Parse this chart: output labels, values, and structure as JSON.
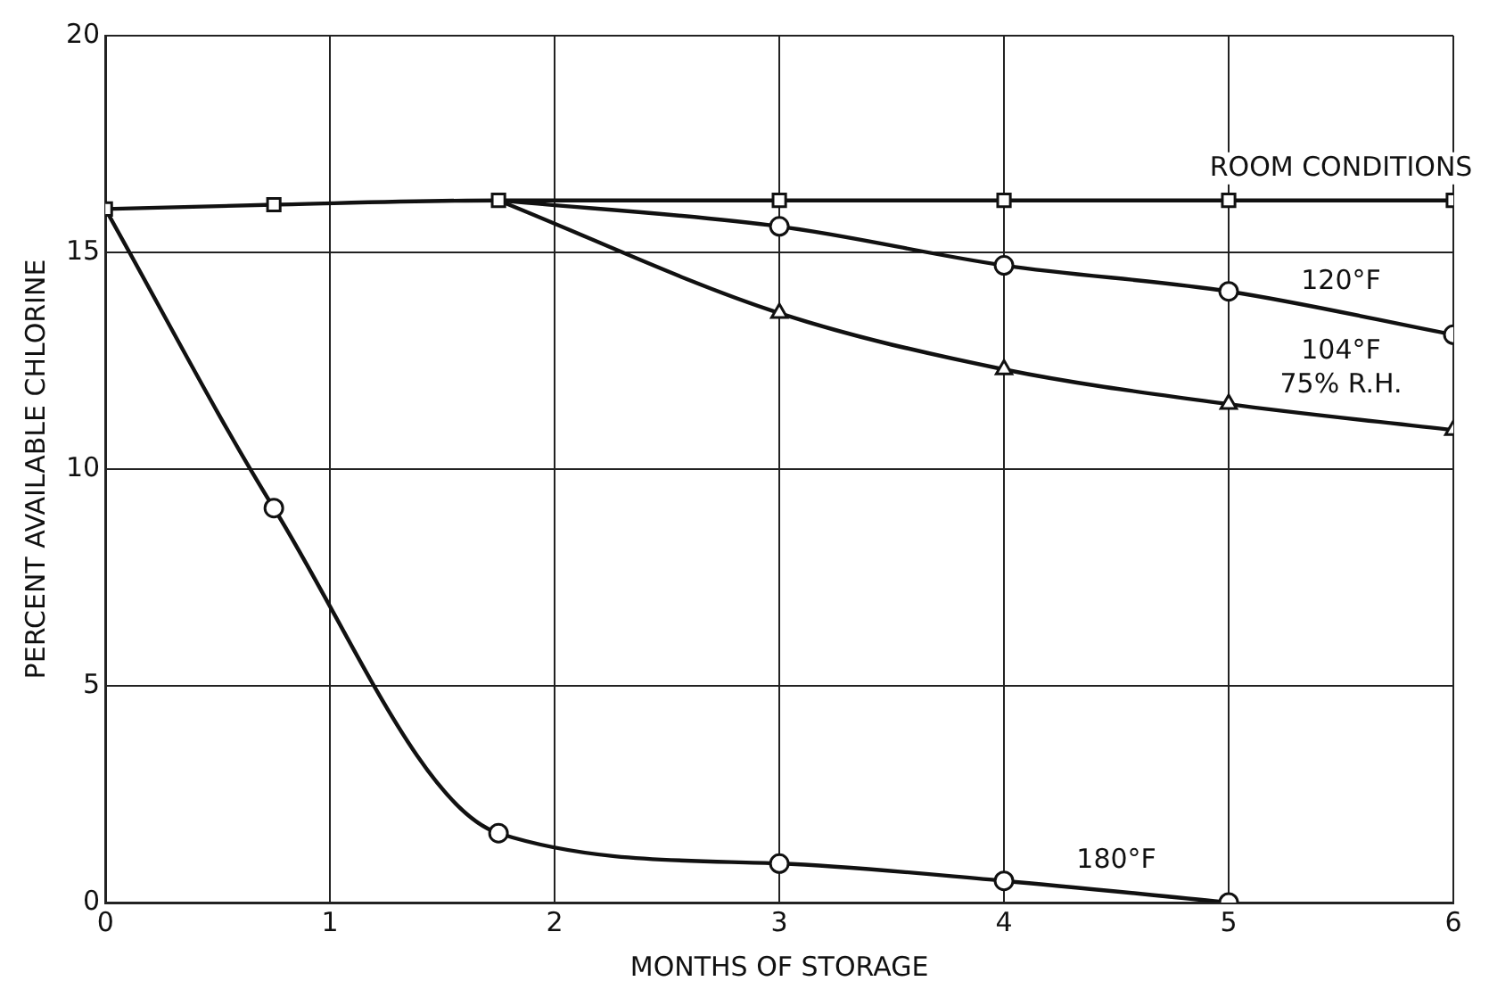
{
  "chart_data": {
    "type": "line",
    "xlabel": "MONTHS OF STORAGE",
    "ylabel": "PERCENT AVAILABLE CHLORINE",
    "xlim": [
      0,
      6
    ],
    "ylim": [
      0,
      20
    ],
    "xticks": [
      0,
      1,
      2,
      3,
      4,
      5,
      6
    ],
    "yticks": [
      0,
      5,
      10,
      15,
      20
    ],
    "grid": true,
    "legend": false,
    "line_style": "solid",
    "series": [
      {
        "name": "ROOM CONDITIONS",
        "color": "#111111",
        "marker": "square",
        "x": [
          0,
          0.75,
          1.75,
          3,
          4,
          5,
          6
        ],
        "values": [
          16,
          16.1,
          16.2,
          16.2,
          16.2,
          16.2,
          16.2
        ]
      },
      {
        "name": "120°F",
        "color": "#111111",
        "marker": "circle",
        "x": [
          1.75,
          3,
          4,
          5,
          6
        ],
        "values": [
          16.2,
          15.6,
          14.7,
          14.1,
          13.1
        ]
      },
      {
        "name": "104°F\n75% R.H.",
        "color": "#111111",
        "marker": "triangle",
        "x": [
          1.75,
          3,
          4,
          5,
          6
        ],
        "values": [
          16.2,
          13.6,
          12.3,
          11.5,
          10.9
        ]
      },
      {
        "name": "180°F",
        "color": "#111111",
        "marker": "circle",
        "x": [
          0,
          0.75,
          1.75,
          3,
          4,
          5
        ],
        "values": [
          16,
          9.1,
          1.6,
          0.9,
          0.5,
          0
        ]
      }
    ]
  }
}
